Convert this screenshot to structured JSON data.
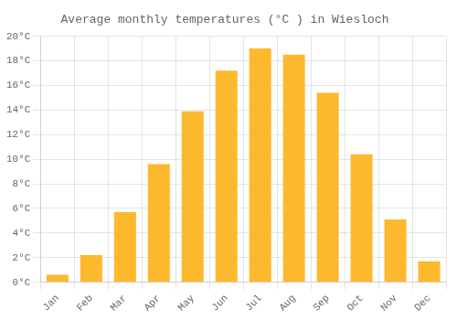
{
  "chart_data": {
    "type": "bar",
    "title": "Average monthly temperatures (°C ) in Wiesloch",
    "categories": [
      "Jan",
      "Feb",
      "Mar",
      "Apr",
      "May",
      "Jun",
      "Jul",
      "Aug",
      "Sep",
      "Oct",
      "Nov",
      "Dec"
    ],
    "values": [
      0.6,
      2.2,
      5.7,
      9.6,
      13.9,
      17.2,
      19.0,
      18.5,
      15.4,
      10.4,
      5.1,
      1.7
    ],
    "color": "#FDB92E",
    "ylim": [
      0,
      20
    ],
    "yticks": [
      {
        "value": 0,
        "label": "0°C"
      },
      {
        "value": 2,
        "label": "2°C"
      },
      {
        "value": 4,
        "label": "4°C"
      },
      {
        "value": 6,
        "label": "6°C"
      },
      {
        "value": 8,
        "label": "8°C"
      },
      {
        "value": 10,
        "label": "10°C"
      },
      {
        "value": 12,
        "label": "12°C"
      },
      {
        "value": 14,
        "label": "14°C"
      },
      {
        "value": 16,
        "label": "16°C"
      },
      {
        "value": 18,
        "label": "18°C"
      },
      {
        "value": 20,
        "label": "20°C"
      }
    ],
    "grid": true
  }
}
